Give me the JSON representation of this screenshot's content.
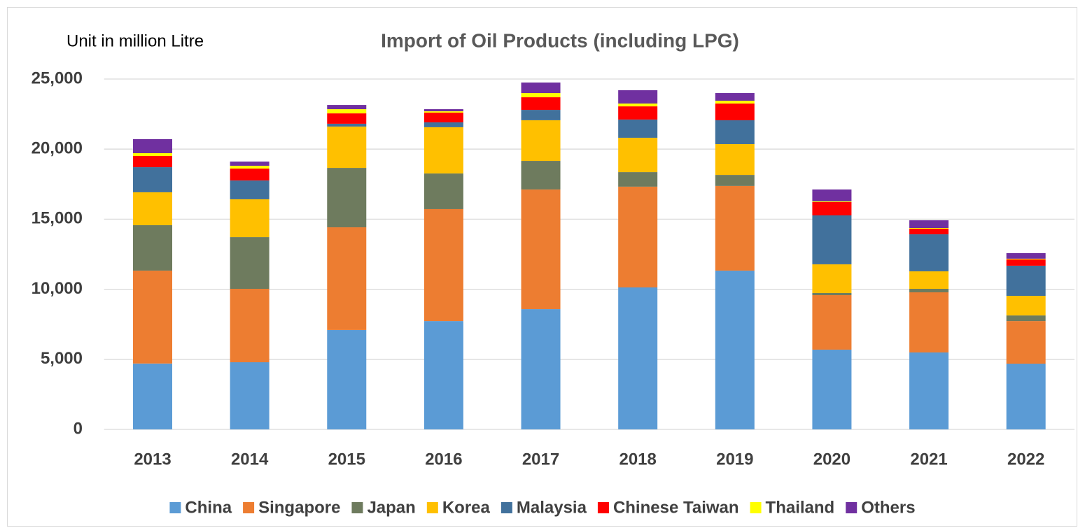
{
  "chart_data": {
    "type": "stacked_bar",
    "title": "Import of Oil Products (including LPG)",
    "unit_label": "Unit in million Litre",
    "categories": [
      "2013",
      "2014",
      "2015",
      "2016",
      "2017",
      "2018",
      "2019",
      "2020",
      "2021",
      "2022"
    ],
    "series": [
      {
        "name": "China",
        "color": "#5b9bd5",
        "values": [
          4700,
          4790,
          7090,
          7730,
          8580,
          10130,
          11330,
          5690,
          5490,
          4690
        ]
      },
      {
        "name": "Singapore",
        "color": "#ed7d31",
        "values": [
          6630,
          5240,
          7330,
          7990,
          8540,
          7190,
          6040,
          3890,
          4290,
          3040
        ]
      },
      {
        "name": "Japan",
        "color": "#6e7b5e",
        "values": [
          3240,
          3690,
          4240,
          2540,
          2040,
          1040,
          790,
          150,
          250,
          400
        ]
      },
      {
        "name": "Korea",
        "color": "#ffc000",
        "values": [
          2350,
          2700,
          2950,
          3300,
          2900,
          2450,
          2200,
          2050,
          1250,
          1400
        ]
      },
      {
        "name": "Malaysia",
        "color": "#41719c",
        "values": [
          1790,
          1340,
          200,
          350,
          740,
          1300,
          1700,
          3490,
          2640,
          2150
        ]
      },
      {
        "name": "Chinese Taiwan",
        "color": "#ff0000",
        "values": [
          800,
          850,
          740,
          690,
          900,
          940,
          1190,
          950,
          400,
          450
        ]
      },
      {
        "name": "Thailand",
        "color": "#ffff00",
        "values": [
          200,
          200,
          300,
          100,
          300,
          200,
          200,
          50,
          50,
          50
        ]
      },
      {
        "name": "Others",
        "color": "#7030a0",
        "values": [
          1000,
          300,
          300,
          150,
          750,
          950,
          550,
          850,
          550,
          400
        ]
      }
    ],
    "ylim": [
      0,
      25000
    ],
    "yticks": [
      0,
      {
        "value": 5000,
        "label": "5,000"
      },
      {
        "value": 10000,
        "label": "10,000"
      },
      {
        "value": 15000,
        "label": "15,000"
      },
      {
        "value": 20000,
        "label": "20,000"
      },
      {
        "value": 25000,
        "label": "25,000"
      }
    ],
    "grid": true,
    "legend": "bottom"
  }
}
